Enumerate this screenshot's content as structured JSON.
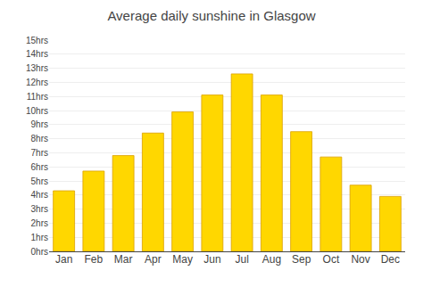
{
  "chart_data": {
    "type": "bar",
    "title": "Average daily sunshine in Glasgow",
    "categories": [
      "Jan",
      "Feb",
      "Mar",
      "Apr",
      "May",
      "Jun",
      "Jul",
      "Aug",
      "Sep",
      "Oct",
      "Nov",
      "Dec"
    ],
    "values": [
      4.3,
      5.7,
      6.8,
      8.4,
      9.9,
      11.1,
      12.6,
      11.1,
      8.5,
      6.7,
      4.7,
      3.9
    ],
    "color": "#FFD700",
    "ylim": [
      0,
      15
    ],
    "yticks": [
      {
        "value": 0,
        "label": "0hrs"
      },
      {
        "value": 1,
        "label": "1hrs"
      },
      {
        "value": 2,
        "label": "2hrs"
      },
      {
        "value": 3,
        "label": "3hrs"
      },
      {
        "value": 4,
        "label": "4hrs"
      },
      {
        "value": 5,
        "label": "5hrs"
      },
      {
        "value": 6,
        "label": "6hrs"
      },
      {
        "value": 7,
        "label": "7hrs"
      },
      {
        "value": 8,
        "label": "8hrs"
      },
      {
        "value": 9,
        "label": "9hrs"
      },
      {
        "value": 10,
        "label": "10hrs"
      },
      {
        "value": 11,
        "label": "11hrs"
      },
      {
        "value": 12,
        "label": "12hrs"
      },
      {
        "value": 13,
        "label": "13hrs"
      },
      {
        "value": 14,
        "label": "14hrs"
      },
      {
        "value": 15,
        "label": "15hrs"
      }
    ],
    "grid": true
  }
}
